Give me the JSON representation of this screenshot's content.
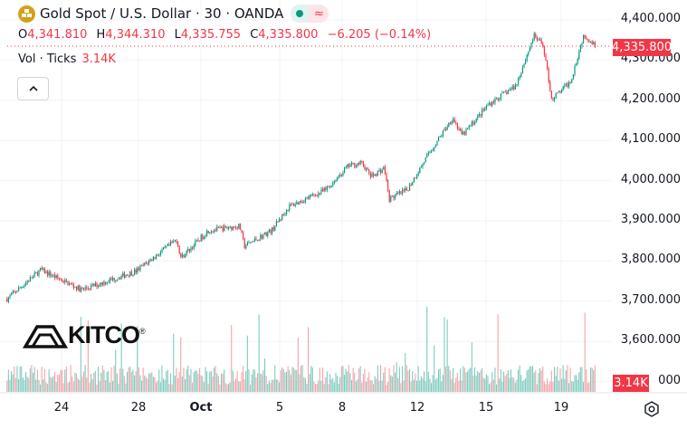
{
  "header": {
    "title": "Gold Spot / U.S. Dollar · 30 · OANDA",
    "symbol_icon": "gold-bars-icon",
    "market_status": "open",
    "status_colors": {
      "open": "#089981",
      "delayed": "#f23645"
    }
  },
  "ohlc": {
    "o_label": "O",
    "open": "4,341.810",
    "h_label": "H",
    "high": "4,344.310",
    "l_label": "L",
    "low": "4,335.755",
    "c_label": "C",
    "close": "4,335.800",
    "change": "−6.205 (−0.14%)"
  },
  "volume": {
    "label": "Vol · Ticks",
    "value": "3.14K"
  },
  "price_axis": {
    "labels": [
      "4,400.000",
      "4,300.000",
      "4,200.000",
      "4,100.000",
      "4,000.000",
      "3,900.000",
      "3,800.000",
      "3,700.000",
      "3,600.000",
      "000"
    ],
    "last_price": "4,335.800",
    "last_volume": "3.14K"
  },
  "time_axis": {
    "labels": [
      "24",
      "28",
      "Oct",
      "5",
      "8",
      "12",
      "15",
      "19"
    ]
  },
  "logo": "KITCO®",
  "colors": {
    "up": "#089981",
    "down": "#f23645",
    "up_volume": "#7fcbbd",
    "down_volume": "#f5a3a9"
  },
  "chart_data": {
    "type": "candlestick",
    "title": "Gold Spot / U.S. Dollar · 30 · OANDA",
    "interval": "30 min",
    "ylim": [
      3500,
      4400
    ],
    "y_ticks": [
      3600,
      3700,
      3800,
      3900,
      4000,
      4100,
      4200,
      4300,
      4400
    ],
    "x_ticks": [
      {
        "label": "24",
        "date": "2025-09-24"
      },
      {
        "label": "28",
        "date": "2025-09-28"
      },
      {
        "label": "Oct",
        "date": "2025-10-01"
      },
      {
        "label": "5",
        "date": "2025-10-05"
      },
      {
        "label": "8",
        "date": "2025-10-08"
      },
      {
        "label": "12",
        "date": "2025-10-12"
      },
      {
        "label": "15",
        "date": "2025-10-15"
      },
      {
        "label": "19",
        "date": "2025-10-19"
      }
    ],
    "grid": true,
    "last_close": 4335.8,
    "approx_close_path": [
      [
        "2025-09-21T04:00",
        3706
      ],
      [
        "2025-09-22T22:00",
        3778
      ],
      [
        "2025-09-25T01:00",
        3728
      ],
      [
        "2025-09-27T21:00",
        3775
      ],
      [
        "2025-09-29T20:00",
        3853
      ],
      [
        "2025-09-30T01:00",
        3808
      ],
      [
        "2025-10-01T09:00",
        3876
      ],
      [
        "2025-10-02T23:00",
        3887
      ],
      [
        "2025-10-03T05:00",
        3837
      ],
      [
        "2025-10-04T14:00",
        3876
      ],
      [
        "2025-10-05T11:00",
        3936
      ],
      [
        "2025-10-07T05:00",
        3977
      ],
      [
        "2025-10-08T08:00",
        4037
      ],
      [
        "2025-10-09T01:00",
        4044
      ],
      [
        "2025-10-09T13:00",
        4010
      ],
      [
        "2025-10-10T06:00",
        4032
      ],
      [
        "2025-10-10T12:00",
        3954
      ],
      [
        "2025-10-11T11:00",
        3977
      ],
      [
        "2025-10-12T09:00",
        4055
      ],
      [
        "2025-10-13T13:00",
        4157
      ],
      [
        "2025-10-13T23:00",
        4112
      ],
      [
        "2025-10-15T03:00",
        4190
      ],
      [
        "2025-10-16T14:00",
        4236
      ],
      [
        "2025-10-17T13:00",
        4360
      ],
      [
        "2025-10-18T01:00",
        4337
      ],
      [
        "2025-10-18T12:00",
        4202
      ],
      [
        "2025-10-19T12:00",
        4247
      ],
      [
        "2025-10-20T05:00",
        4364
      ],
      [
        "2025-10-20T20:00",
        4335.8
      ]
    ],
    "volume_last": "3.14K"
  }
}
